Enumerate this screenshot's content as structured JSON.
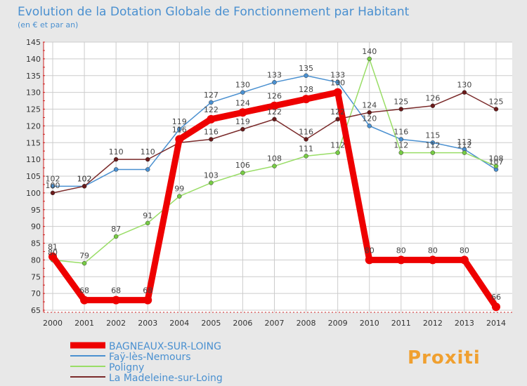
{
  "chart_data": {
    "type": "line",
    "title": "Evolution de la Dotation Globale de Fonctionnement par Habitant",
    "subtitle": "(en € et par an)",
    "xlabel": "",
    "ylabel": "",
    "ylim": [
      65,
      145
    ],
    "y_ticks": [
      65,
      70,
      75,
      80,
      85,
      90,
      95,
      100,
      105,
      110,
      115,
      120,
      125,
      130,
      135,
      140,
      145
    ],
    "x": [
      "2000",
      "2001",
      "2002",
      "2003",
      "2004",
      "2005",
      "2006",
      "2007",
      "2008",
      "2009",
      "2010",
      "2011",
      "2012",
      "2013",
      "2014"
    ],
    "grid": true,
    "legend_position": "bottom-left",
    "series": [
      {
        "name": "Faÿ-lès-Nemours",
        "color": "#4a90d0",
        "marker": "#4a90d0",
        "values": [
          102,
          102,
          107,
          107,
          119,
          127,
          130,
          133,
          135,
          133,
          120,
          116,
          115,
          113,
          107
        ],
        "labels": [
          "102",
          "102",
          "",
          "",
          "119",
          "127",
          "130",
          "133",
          "135",
          "133",
          "120",
          "116",
          "115",
          "113",
          "107"
        ]
      },
      {
        "name": "Poligny",
        "color": "#99dd66",
        "marker": "#77cc44",
        "values": [
          80,
          79,
          87,
          91,
          99,
          103,
          106,
          108,
          111,
          112,
          140,
          112,
          112,
          112,
          108
        ],
        "labels": [
          "80",
          "79",
          "87",
          "91",
          "99",
          "103",
          "106",
          "108",
          "111",
          "112",
          "140",
          "112",
          "112",
          "112",
          "108"
        ]
      },
      {
        "name": "La Madeleine-sur-Loing",
        "color": "#7a2a2a",
        "marker": "#6a1a1a",
        "values": [
          100,
          102,
          110,
          110,
          115,
          116,
          119,
          122,
          116,
          122,
          124,
          125,
          126,
          130,
          125
        ],
        "labels": [
          "100",
          "102",
          "110",
          "110",
          "",
          "116",
          "119",
          "122",
          "116",
          "122",
          "124",
          "125",
          "126",
          "130",
          "125"
        ]
      },
      {
        "name": "BAGNEAUX-SUR-LOING",
        "color": "#ee0000",
        "marker": "#ee0000",
        "values": [
          81,
          68,
          68,
          68,
          116,
          122,
          124,
          126,
          128,
          130,
          80,
          80,
          80,
          80,
          66
        ],
        "labels": [
          "81",
          "68",
          "68",
          "68",
          "116",
          "122",
          "124",
          "126",
          "128",
          "130",
          "80",
          "80",
          "80",
          "80",
          "66"
        ]
      }
    ],
    "legend_order": [
      "BAGNEAUX-SUR-LOING",
      "Faÿ-lès-Nemours",
      "Poligny",
      "La Madeleine-sur-Loing"
    ]
  },
  "branding": {
    "logo_text": "Proxiti"
  },
  "colors": {
    "background": "#e8e8e8",
    "plot_background": "#ffffff",
    "grid": "#cccccc",
    "title": "#4a90d0",
    "tick": "#333333",
    "label_text": "#444444"
  }
}
